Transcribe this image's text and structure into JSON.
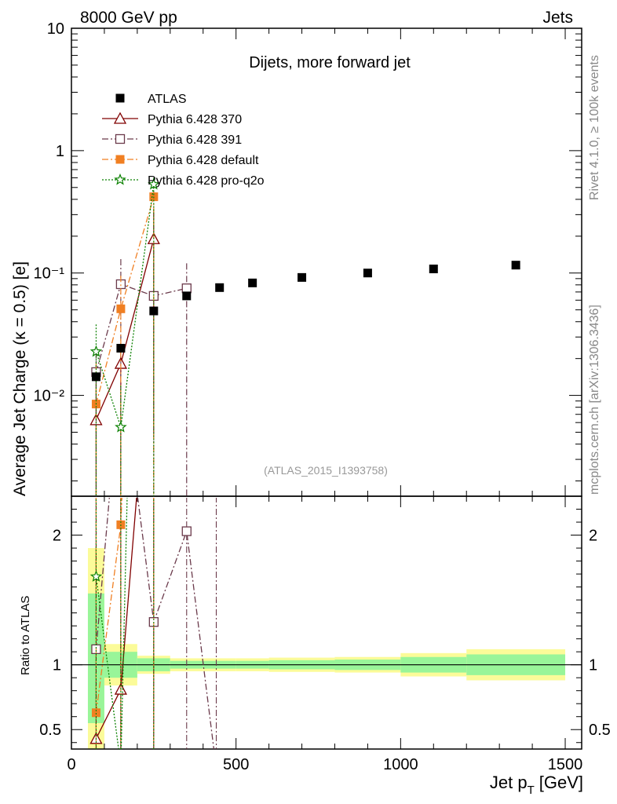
{
  "header": {
    "left": "8000 GeV pp",
    "right": "Jets",
    "side_top": "Rivet 4.1.0, ≥ 100k events",
    "side_bottom": "mcplots.cern.ch [arXiv:1306.3436]"
  },
  "colors": {
    "atlas": "#000000",
    "p370": "#800000",
    "p391": "#6b3a4b",
    "pdefault": "#f07f22",
    "pq2o": "#0a8000",
    "band_inner": "#99f599",
    "band_outer": "#fbfb99"
  },
  "chart_data": {
    "type": "line",
    "title": "Dijets, more forward jet",
    "watermark": "(ATLAS_2015_I1393758)",
    "xlabel": "Jet p",
    "xlabel_sub": "T",
    "xlabel_unit": "[GeV]",
    "ylabel": "Average Jet Charge (κ = 0.5) [e]",
    "ratio_ylabel": "Ratio to ATLAS",
    "xlim": [
      0,
      1550
    ],
    "ylim": [
      0.0015,
      10
    ],
    "yscale": "log",
    "ratio_ylim": [
      0.35,
      2.3
    ],
    "x_ticks": [
      "0",
      "500",
      "1000",
      "1500"
    ],
    "y_ticks": [
      "10",
      "1",
      "10⁻¹",
      "10⁻²"
    ],
    "ratio_ticks": [
      "2",
      "1",
      "0.5"
    ],
    "bins": [
      [
        50,
        100
      ],
      [
        100,
        200
      ],
      [
        200,
        300
      ],
      [
        300,
        400
      ],
      [
        400,
        500
      ],
      [
        500,
        600
      ],
      [
        600,
        800
      ],
      [
        800,
        1000
      ],
      [
        1000,
        1200
      ],
      [
        1200,
        1500
      ]
    ],
    "ratio_band_inner": [
      [
        0.55,
        1.55
      ],
      [
        0.9,
        1.1
      ],
      [
        0.95,
        1.05
      ],
      [
        0.97,
        1.03
      ],
      [
        0.97,
        1.03
      ],
      [
        0.97,
        1.03
      ],
      [
        0.965,
        1.035
      ],
      [
        0.96,
        1.04
      ],
      [
        0.94,
        1.06
      ],
      [
        0.92,
        1.08
      ]
    ],
    "ratio_band_outer": [
      [
        0.35,
        1.9
      ],
      [
        0.84,
        1.16
      ],
      [
        0.93,
        1.07
      ],
      [
        0.95,
        1.05
      ],
      [
        0.95,
        1.05
      ],
      [
        0.95,
        1.05
      ],
      [
        0.945,
        1.055
      ],
      [
        0.94,
        1.06
      ],
      [
        0.91,
        1.09
      ],
      [
        0.88,
        1.12
      ]
    ],
    "series": [
      {
        "name": "ATLAS",
        "key": "atlas",
        "marker": "square-filled",
        "dash": "none",
        "x": [
          75,
          150,
          250,
          350,
          450,
          550,
          700,
          900,
          1100,
          1350
        ],
        "values": [
          0.0142,
          0.0243,
          0.049,
          0.065,
          0.076,
          0.083,
          0.092,
          0.1,
          0.108,
          0.116
        ]
      },
      {
        "name": "Pythia 6.428 370",
        "key": "p370",
        "marker": "triangle-open",
        "dash": "solid",
        "x": [
          75,
          150,
          250
        ],
        "values": [
          0.0063,
          0.0182,
          0.19
        ],
        "ratio": [
          0.43,
          0.81,
          3.9
        ],
        "err_lo": [
          0.0008,
          0.0008,
          0.005
        ],
        "err_hi": [
          0.0125,
          0.0245,
          0.33
        ]
      },
      {
        "name": "Pythia 6.428 391",
        "key": "p391",
        "marker": "square-open",
        "dash": "dashdot",
        "x": [
          75,
          150,
          250,
          350
        ],
        "values": [
          0.0155,
          0.081,
          0.065,
          0.075
        ],
        "ratio": [
          1.12,
          3.3,
          1.33,
          2.03,
          0.2
        ],
        "ratio_x": [
          75,
          150,
          250,
          350,
          440
        ],
        "err_lo": [
          0.0008,
          0.0008,
          0.0008,
          0.0008
        ],
        "err_hi": [
          0.0225,
          0.13,
          0.108,
          0.12
        ]
      },
      {
        "name": "Pythia 6.428 default",
        "key": "pdefault",
        "marker": "square-filled",
        "dash": "dashdot",
        "x": [
          75,
          150,
          250
        ],
        "values": [
          0.0085,
          0.051,
          0.42
        ],
        "ratio": [
          0.63,
          2.08,
          8.6
        ],
        "err_lo": [
          0.0008,
          0.0008,
          0.0008
        ],
        "err_hi": [
          0.0185,
          0.095,
          0.55
        ]
      },
      {
        "name": "Pythia 6.428 pro-q2o",
        "key": "pq2o",
        "marker": "star-open",
        "dash": "dotted",
        "x": [
          75,
          150,
          250
        ],
        "values": [
          0.0228,
          0.0055,
          0.53
        ],
        "ratio": [
          1.68,
          0.22,
          11
        ],
        "err_lo": [
          0.0008,
          0.0008,
          0.0008
        ],
        "err_hi": [
          0.038,
          0.012,
          0.6
        ]
      }
    ]
  }
}
